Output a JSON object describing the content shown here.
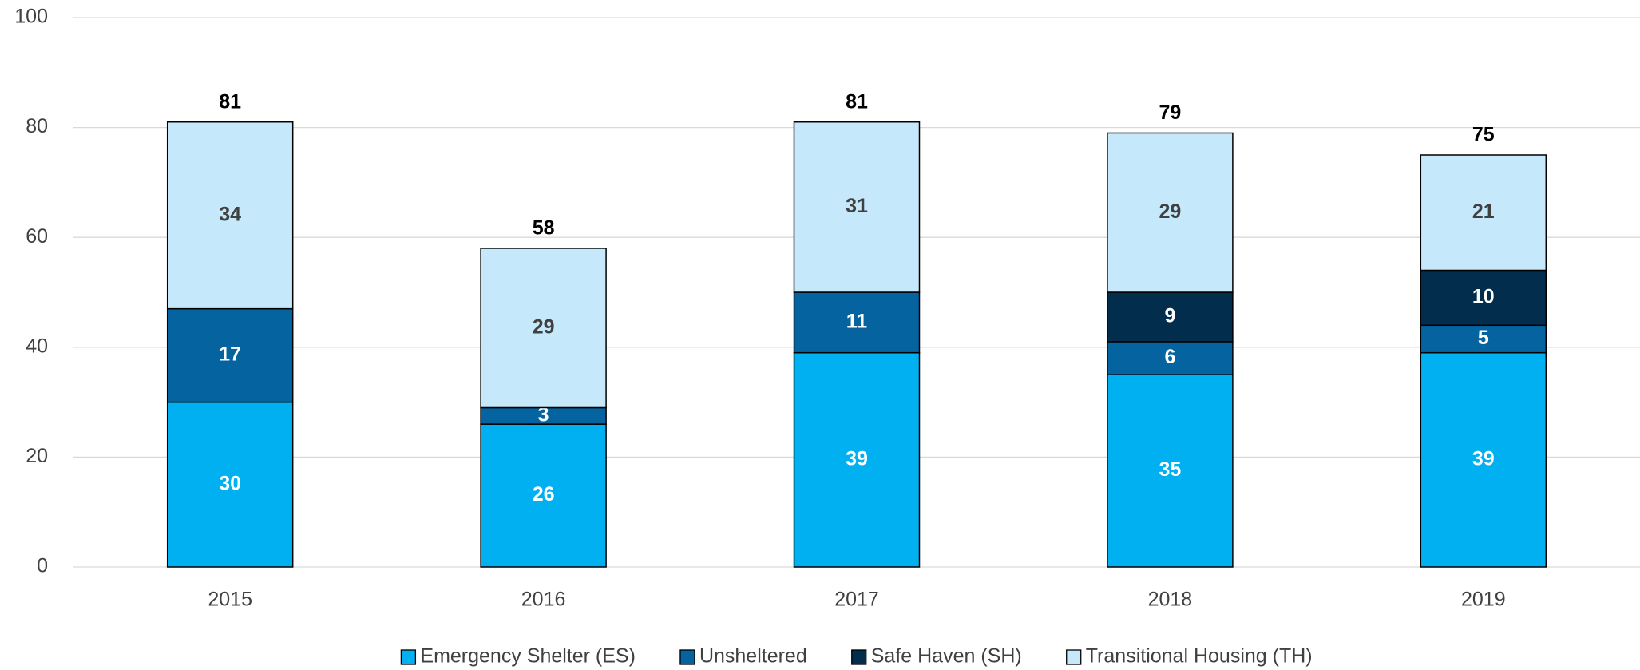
{
  "chart_data": {
    "type": "stacked_bar",
    "categories": [
      "2015",
      "2016",
      "2017",
      "2018",
      "2019"
    ],
    "series": [
      {
        "name": "Emergency Shelter (ES)",
        "color": "#00b0f0",
        "label_color": "#ffffff",
        "values": [
          30,
          26,
          39,
          35,
          39
        ]
      },
      {
        "name": "Unsheltered",
        "color": "#0563a0",
        "label_color": "#ffffff",
        "values": [
          17,
          3,
          11,
          6,
          5
        ]
      },
      {
        "name": "Safe Haven (SH)",
        "color": "#032d4c",
        "label_color": "#ffffff",
        "values": [
          null,
          null,
          null,
          9,
          10
        ]
      },
      {
        "name": "Transitional Housing (TH)",
        "color": "#c5e8fb",
        "label_color": "#404040",
        "values": [
          34,
          29,
          31,
          29,
          21
        ]
      }
    ],
    "totals": [
      81,
      58,
      81,
      79,
      75
    ],
    "ylim": [
      0,
      100
    ],
    "yticks": [
      0,
      20,
      40,
      60,
      80,
      100
    ],
    "grid": true,
    "legend": "bottom"
  }
}
